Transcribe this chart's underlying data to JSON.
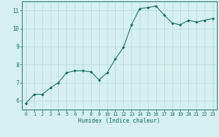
{
  "x": [
    0,
    1,
    2,
    3,
    4,
    5,
    6,
    7,
    8,
    9,
    10,
    11,
    12,
    13,
    14,
    15,
    16,
    17,
    18,
    19,
    20,
    21,
    22,
    23
  ],
  "y": [
    5.85,
    6.35,
    6.35,
    6.7,
    7.0,
    7.55,
    7.65,
    7.65,
    7.6,
    7.15,
    7.55,
    8.3,
    8.95,
    10.2,
    11.1,
    11.15,
    11.25,
    10.75,
    10.3,
    10.2,
    10.45,
    10.35,
    10.45,
    10.55
  ],
  "xlabel": "Humidex (Indice chaleur)",
  "ylim": [
    5.5,
    11.5
  ],
  "xlim": [
    -0.5,
    23.5
  ],
  "yticks": [
    6,
    7,
    8,
    9,
    10,
    11
  ],
  "xticks": [
    0,
    1,
    2,
    3,
    4,
    5,
    6,
    7,
    8,
    9,
    10,
    11,
    12,
    13,
    14,
    15,
    16,
    17,
    18,
    19,
    20,
    21,
    22,
    23
  ],
  "line_color": "#1a6b5a",
  "marker_color": "#1a6b5a",
  "bg_color": "#d5f0ee",
  "grid_color": "#b5d8d3",
  "axis_color": "#1a6b5a",
  "tick_label_color": "#1a6b5a",
  "xlabel_color": "#1a6b5a",
  "tick_fontsize": 5.0,
  "xlabel_fontsize": 6.0
}
